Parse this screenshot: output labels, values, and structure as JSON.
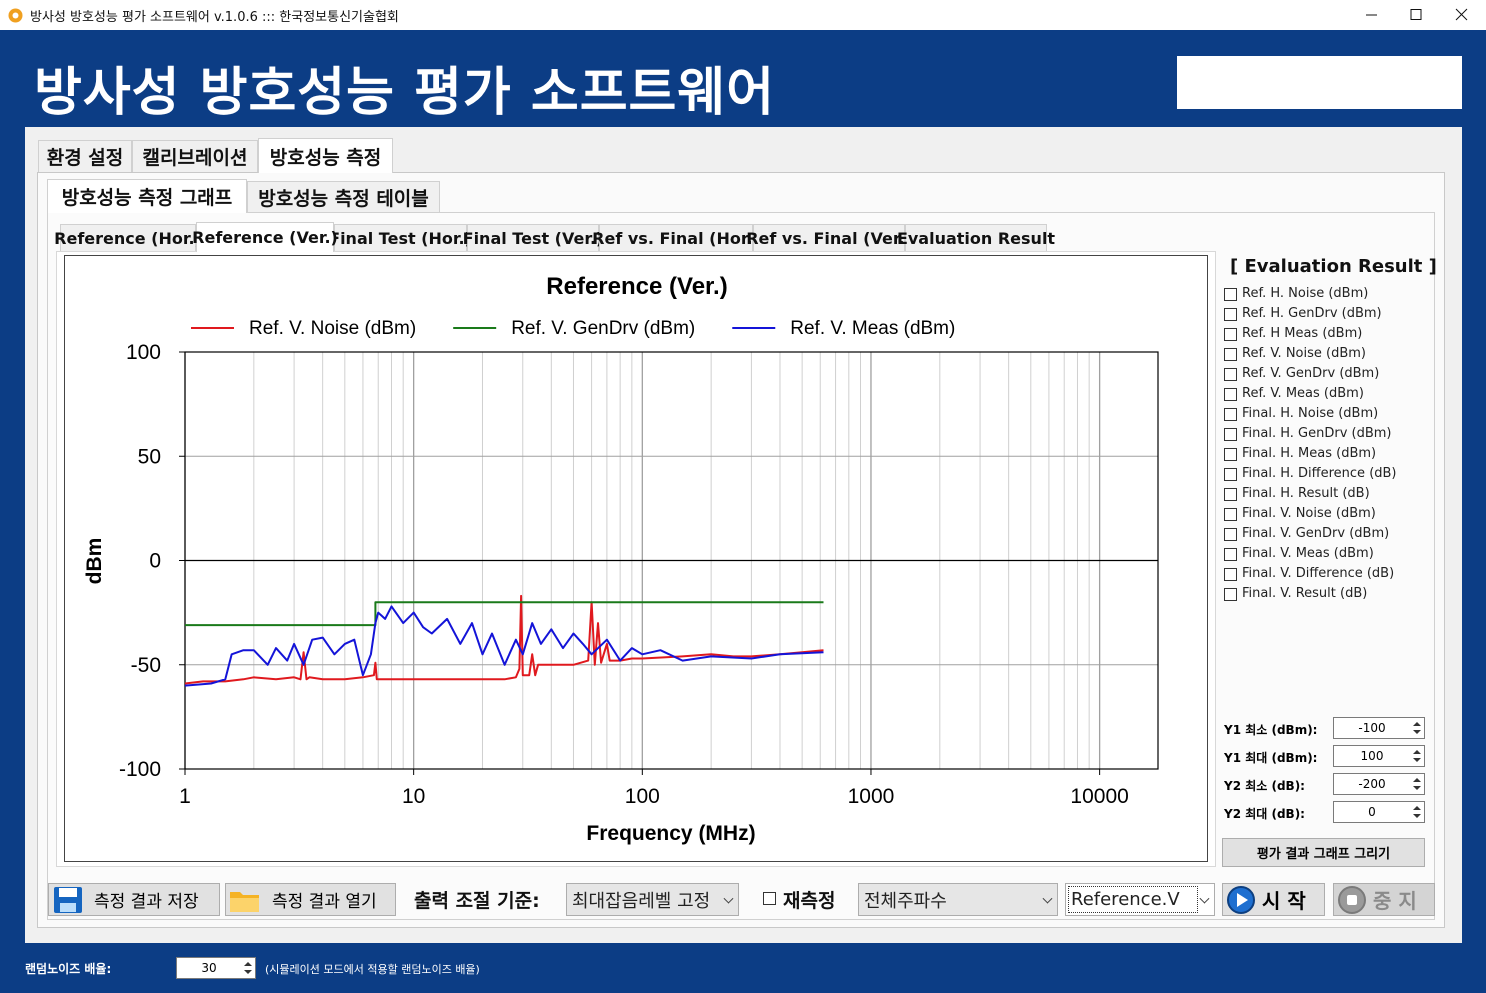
{
  "window": {
    "title": "방사성 방호성능 평가 소프트웨어 v.1.0.6 ::: 한국정보통신기술협회"
  },
  "header": {
    "title": "방사성 방호성능 평가 소프트웨어"
  },
  "main_tabs": {
    "items": [
      "환경 설정",
      "캘리브레이션",
      "방호성능 측정"
    ],
    "selected": 2
  },
  "sub_tabs": {
    "items": [
      "방호성능 측정 그래프",
      "방호성능 측정 테이블"
    ],
    "selected": 0
  },
  "graph_tabs": {
    "items": [
      "Reference (Hor.)",
      "Reference (Ver.)",
      "Final Test (Hor.)",
      "Final Test (Ver.)",
      "Ref vs. Final (Hor.)",
      "Ref vs. Final (Ver.)",
      "Evaluation Result"
    ],
    "selected": 1
  },
  "chart_data": {
    "type": "line",
    "title": "Reference (Ver.)",
    "x_label": "Frequency (MHz)",
    "y_label": "dBm",
    "xscale": "log",
    "xlim": [
      1,
      18000
    ],
    "xticks": [
      1,
      10,
      100,
      1000,
      10000
    ],
    "ylim": [
      -100,
      100
    ],
    "yticks": [
      -100,
      -50,
      0,
      50,
      100
    ],
    "grid": true,
    "legend": "top",
    "series": [
      {
        "name": "Ref. V. Noise (dBm)",
        "color": "#e0191e",
        "x": [
          1,
          1.2,
          1.5,
          1.8,
          2,
          2.5,
          3,
          3.2,
          3.3,
          3.4,
          3.5,
          4,
          5,
          6,
          6.7,
          6.8,
          6.9,
          8,
          10,
          15,
          20,
          25,
          28,
          29,
          29.5,
          30,
          32,
          33,
          34,
          35,
          36,
          40,
          50,
          58,
          60,
          62,
          64,
          66,
          70,
          72,
          75,
          80,
          90,
          100,
          150,
          200,
          250,
          300,
          400,
          500,
          620
        ],
        "values": [
          -59,
          -58,
          -58,
          -57,
          -56,
          -57,
          -56,
          -57,
          -44,
          -57,
          -56,
          -57,
          -57,
          -56,
          -55,
          -49,
          -57,
          -57,
          -57,
          -57,
          -57,
          -57,
          -56,
          -52,
          -17,
          -55,
          -55,
          -45,
          -55,
          -50,
          -50,
          -50,
          -50,
          -48,
          -20,
          -50,
          -30,
          -49,
          -40,
          -48,
          -48,
          -48,
          -47,
          -47,
          -46,
          -45,
          -46,
          -46,
          -45,
          -44,
          -43
        ]
      },
      {
        "name": "Ref. V. GenDrv (dBm)",
        "color": "#1a7a1a",
        "x": [
          1,
          6.8,
          6.8,
          620
        ],
        "values": [
          -31,
          -31,
          -20,
          -20
        ]
      },
      {
        "name": "Ref. V. Meas (dBm)",
        "color": "#1414d8",
        "x": [
          1,
          1.3,
          1.5,
          1.6,
          1.8,
          2,
          2.3,
          2.5,
          2.8,
          3,
          3.3,
          3.6,
          4,
          4.5,
          5,
          5.5,
          6,
          6.5,
          6.8,
          7,
          7.5,
          8,
          9,
          10,
          11,
          12,
          14,
          16,
          18,
          20,
          22,
          25,
          28,
          30,
          33,
          36,
          40,
          45,
          50,
          55,
          60,
          70,
          80,
          90,
          100,
          120,
          150,
          200,
          300,
          400,
          620
        ],
        "values": [
          -60,
          -59,
          -57,
          -45,
          -43,
          -43,
          -50,
          -42,
          -48,
          -40,
          -50,
          -38,
          -37,
          -45,
          -40,
          -38,
          -55,
          -45,
          -30,
          -25,
          -28,
          -22,
          -30,
          -25,
          -32,
          -35,
          -28,
          -40,
          -30,
          -45,
          -35,
          -50,
          -38,
          -45,
          -30,
          -40,
          -33,
          -42,
          -35,
          -40,
          -45,
          -38,
          -48,
          -42,
          -45,
          -43,
          -48,
          -46,
          -47,
          -45,
          -44
        ]
      }
    ]
  },
  "evaluation_panel": {
    "title": "[ Evaluation Result ]",
    "options": [
      "Ref. H. Noise (dBm)",
      "Ref. H. GenDrv (dBm)",
      "Ref. H Meas (dBm)",
      "Ref. V. Noise (dBm)",
      "Ref. V. GenDrv (dBm)",
      "Ref. V. Meas (dBm)",
      "Final. H. Noise (dBm)",
      "Final. H. GenDrv (dBm)",
      "Final. H. Meas (dBm)",
      "Final. H. Difference (dB)",
      "Final. H. Result (dB)",
      "Final. V. Noise (dBm)",
      "Final. V. GenDrv (dBm)",
      "Final. V. Meas (dBm)",
      "Final. V. Difference (dB)",
      "Final. V. Result (dB)"
    ],
    "settings": [
      {
        "label": "Y1 최소 (dBm):",
        "value": -100
      },
      {
        "label": "Y1 최대 (dBm):",
        "value": 100
      },
      {
        "label": "Y2 최소 (dB):",
        "value": -200
      },
      {
        "label": "Y2 최대 (dB):",
        "value": 0
      }
    ],
    "button": "평가 결과 그래프 그리기"
  },
  "controls": {
    "save_button": "측정 결과 저장",
    "open_button": "측정 결과 열기",
    "output_label": "출력 조절 기준:",
    "output_mode": "최대잡음레벨 고정",
    "remeasure": "재측정",
    "frequency_range": "전체주파수",
    "data_set": "Reference.V",
    "start_button": "시 작",
    "stop_button": "중 지"
  },
  "footer": {
    "label": "랜덤노이즈 배율:",
    "value": 30,
    "note": "(시뮬레이션 모드에서 적용할 랜덤노이즈 배율)"
  }
}
